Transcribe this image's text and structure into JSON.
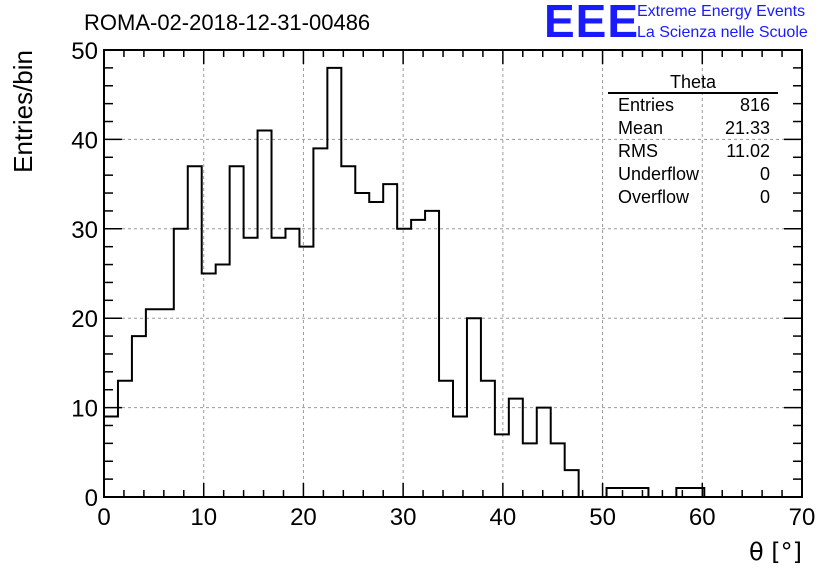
{
  "title": "ROMA-02-2018-12-31-00486",
  "logo": {
    "mark": "EEE",
    "line1": "Extreme Energy Events",
    "line2": "La Scienza nelle Scuole",
    "color": "#1a1aff"
  },
  "stats": {
    "title": "Theta",
    "rows": [
      {
        "label": "Entries",
        "value": "816"
      },
      {
        "label": "Mean",
        "value": "21.33"
      },
      {
        "label": "RMS",
        "value": "11.02"
      },
      {
        "label": "Underflow",
        "value": "0"
      },
      {
        "label": "Overflow",
        "value": "0"
      }
    ]
  },
  "chart_data": {
    "type": "bar",
    "style": "step-histogram",
    "xlabel": "θ [°]",
    "ylabel": "Entries/bin",
    "xlim": [
      0,
      70
    ],
    "ylim": [
      0,
      50
    ],
    "xticks": [
      0,
      10,
      20,
      30,
      40,
      50,
      60,
      70
    ],
    "yticks": [
      0,
      10,
      20,
      30,
      40,
      50
    ],
    "grid": true,
    "bin_width": 1.4,
    "bin_edges_start": 0,
    "values": [
      9,
      13,
      18,
      21,
      21,
      30,
      37,
      25,
      26,
      37,
      29,
      41,
      29,
      30,
      28,
      39,
      48,
      37,
      34,
      33,
      35,
      30,
      31,
      32,
      13,
      9,
      20,
      13,
      7,
      11,
      6,
      10,
      6,
      3,
      0,
      0,
      1,
      1,
      1,
      0,
      0,
      1,
      1,
      0,
      0,
      0,
      0,
      0,
      0,
      0
    ],
    "line_color": "#000000"
  }
}
